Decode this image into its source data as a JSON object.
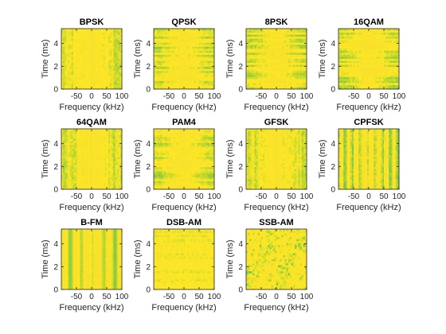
{
  "figure": {
    "background": "#ffffff"
  },
  "chart_data": {
    "type": "heatmap",
    "colormap": [
      "#3fbc73",
      "#a6d032",
      "#fde725",
      "#f9e12b"
    ],
    "xlabel": "Frequency (kHz)",
    "ylabel": "Time (ms)",
    "xlim": [
      -100,
      100
    ],
    "ylim": [
      0,
      5.3
    ],
    "xticks": [
      -50,
      0,
      50,
      100
    ],
    "xtick_labels": [
      "-50",
      "0",
      "50",
      "100"
    ],
    "yticks": [
      0,
      2,
      4
    ],
    "ytick_labels": [
      "0",
      "2",
      "4"
    ],
    "panels": [
      {
        "title": "BPSK",
        "pattern": "vertical-noisy"
      },
      {
        "title": "QPSK",
        "pattern": "horizontal-noisy"
      },
      {
        "title": "8PSK",
        "pattern": "horizontal-noisy"
      },
      {
        "title": "16QAM",
        "pattern": "horizontal-noisy"
      },
      {
        "title": "64QAM",
        "pattern": "vertical-noisy"
      },
      {
        "title": "PAM4",
        "pattern": "horizontal-noisy"
      },
      {
        "title": "GFSK",
        "pattern": "vertical-noisy"
      },
      {
        "title": "CPFSK",
        "pattern": "vertical-stripes"
      },
      {
        "title": "B-FM",
        "pattern": "vertical-stripes-smooth"
      },
      {
        "title": "DSB-AM",
        "pattern": "fine-horizontal"
      },
      {
        "title": "SSB-AM",
        "pattern": "blocky"
      }
    ]
  }
}
